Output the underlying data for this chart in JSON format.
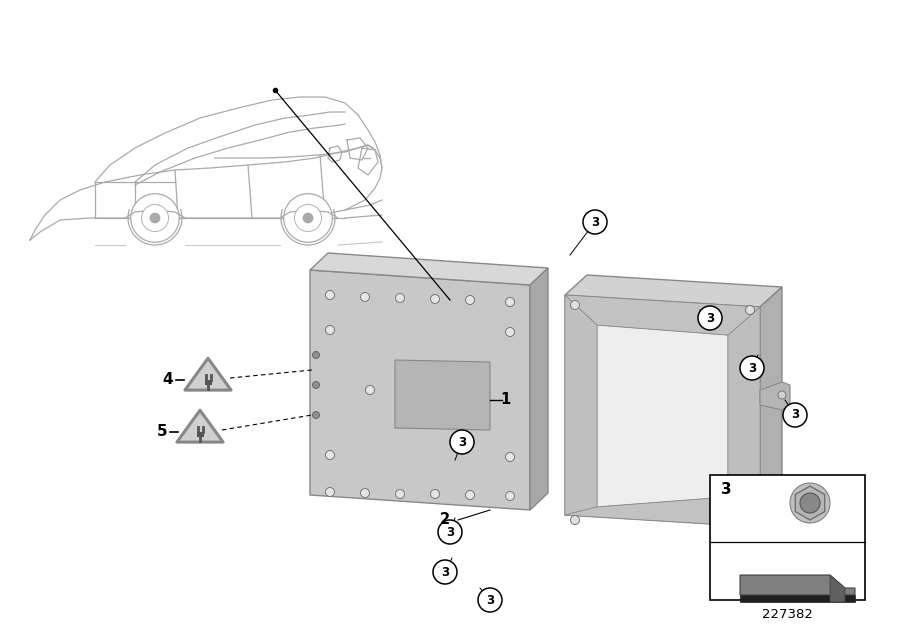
{
  "bg_color": "#ffffff",
  "diagram_number": "227382",
  "car_line_color": "#aaaaaa",
  "part_gray_light": "#c8c8c8",
  "part_gray_mid": "#b0b0b0",
  "part_gray_dark": "#989898",
  "part_gray_top": "#d5d5d5",
  "line_color": "#000000",
  "circle_fill": "#ffffff",
  "circle_edge": "#000000",
  "warn_fill": "#d0d0d0",
  "warn_edge": "#888888",
  "box_edge": "#000000",
  "box_fill": "#ffffff",
  "nut_color": "#b8b8b8",
  "bracket_color": "#404040"
}
